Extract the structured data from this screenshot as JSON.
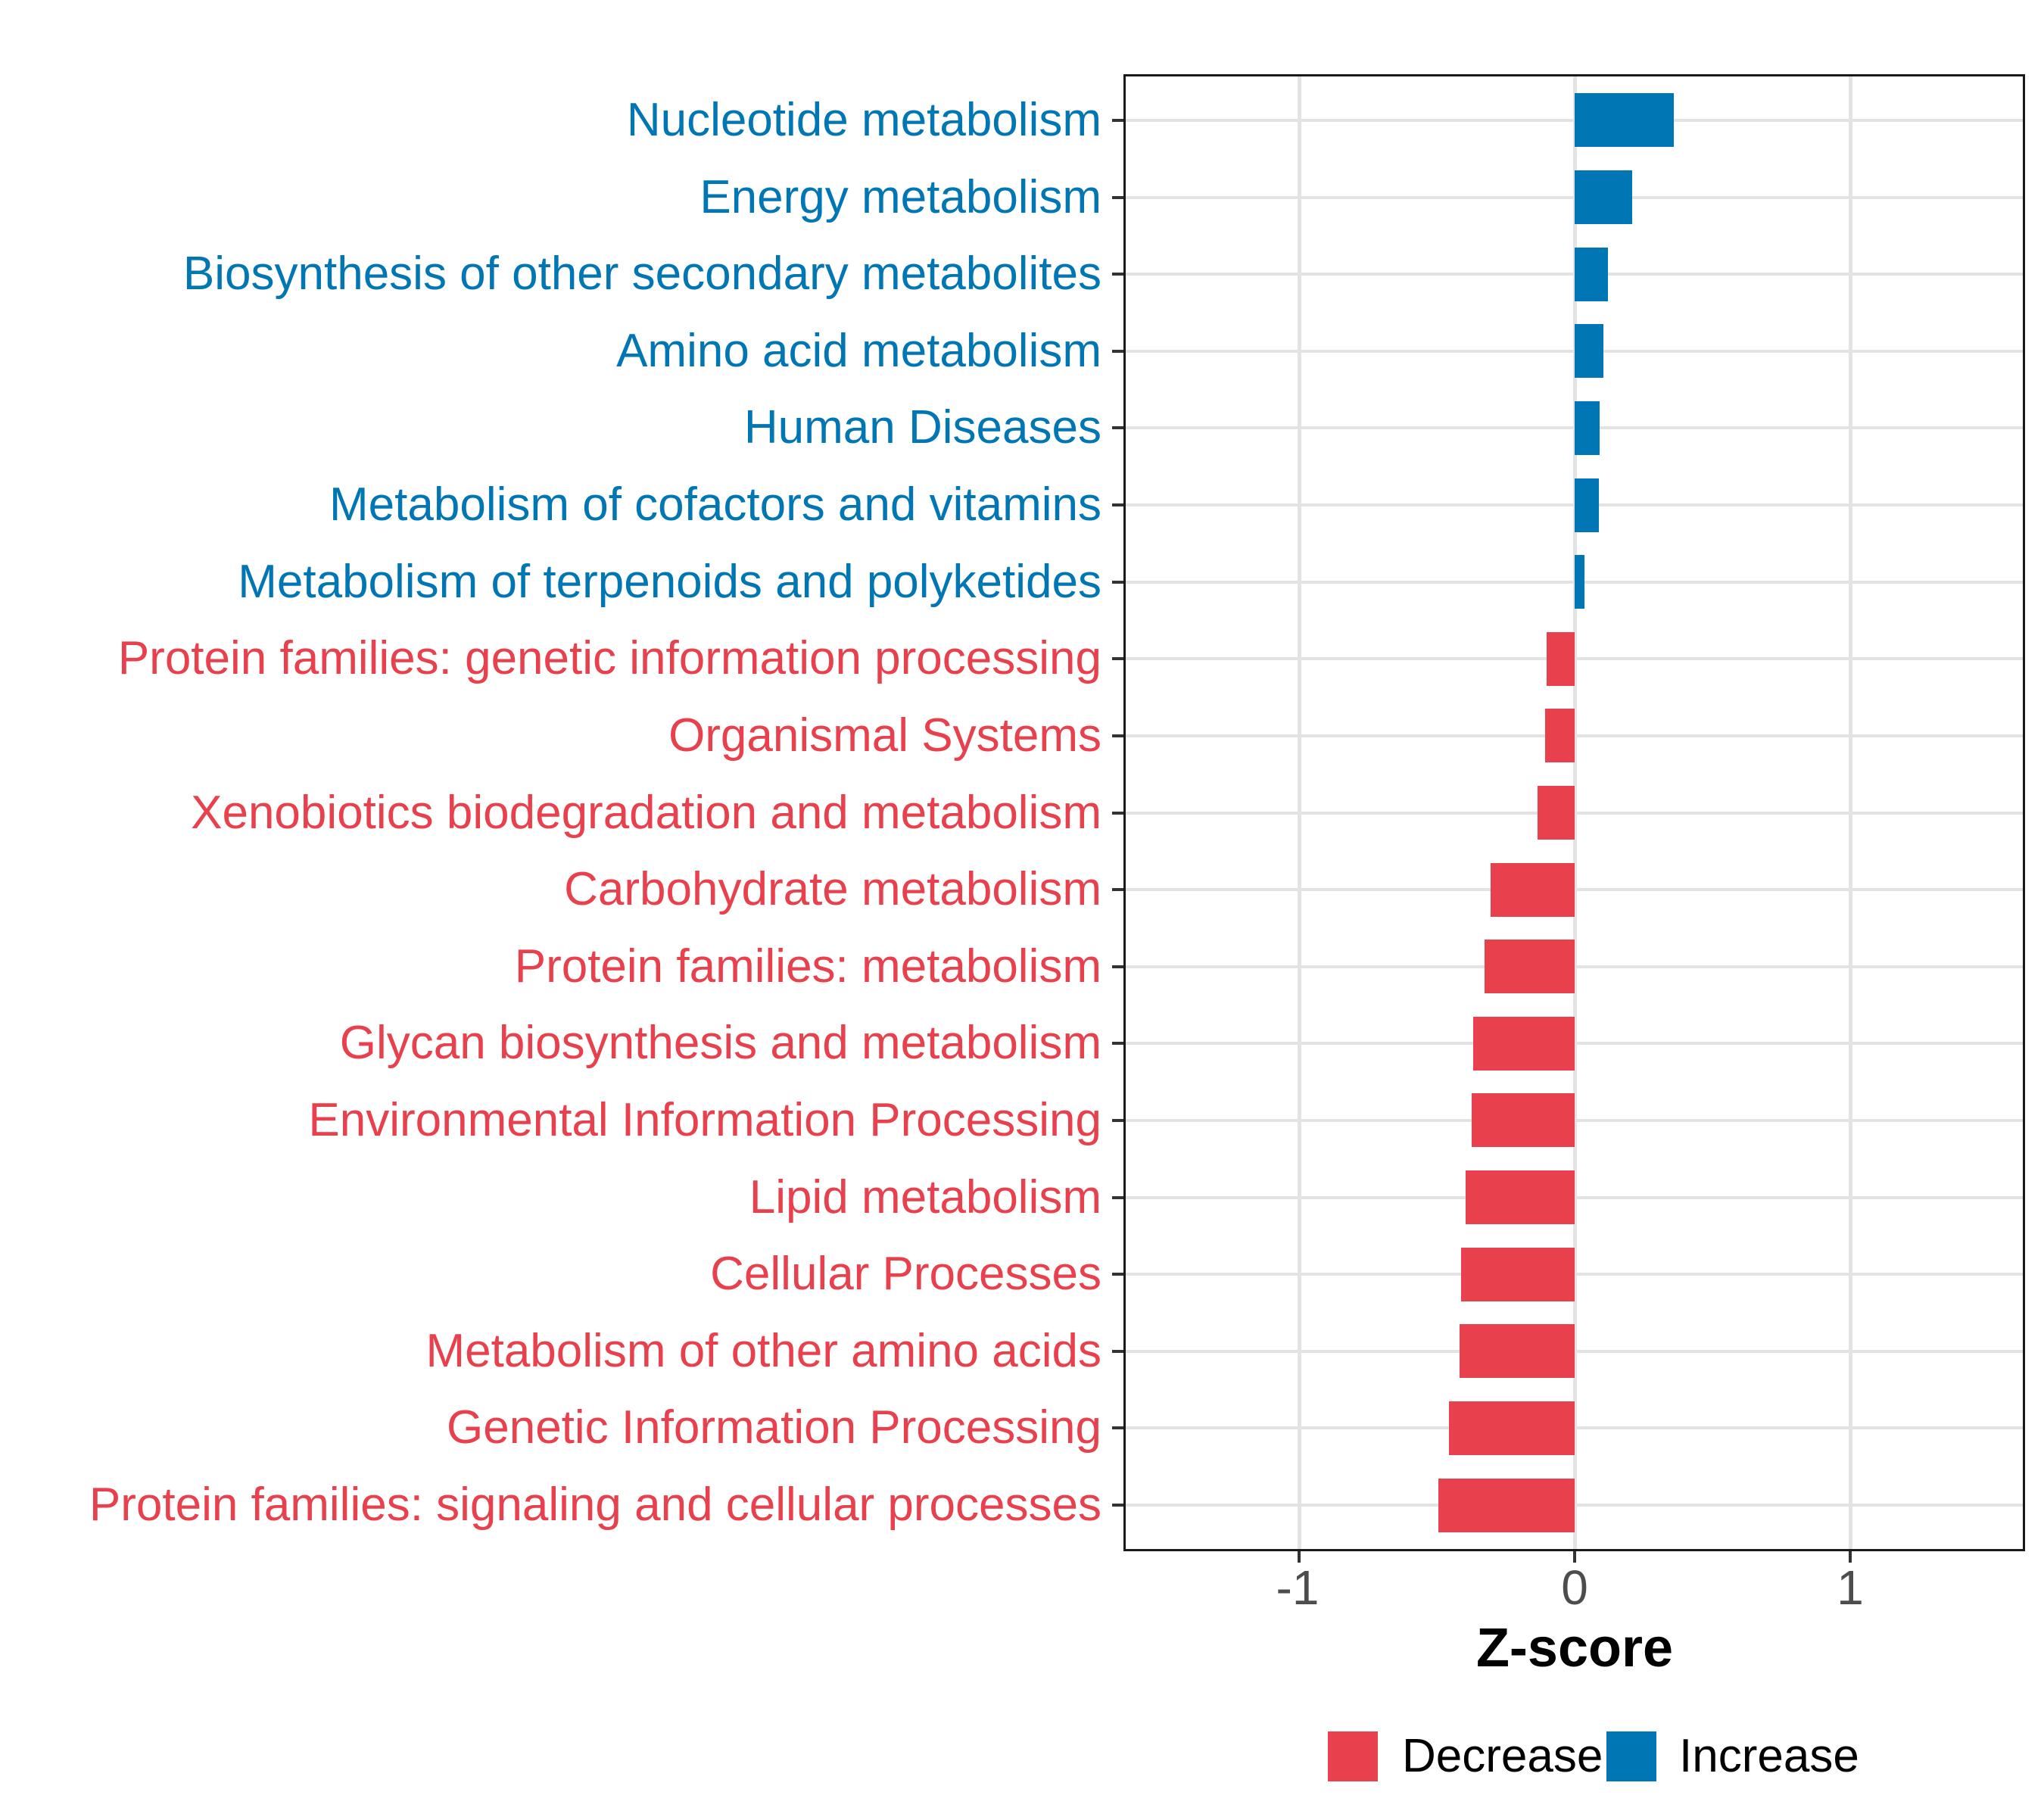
{
  "figure": {
    "background": "#FFFFFF"
  },
  "chart_data": {
    "type": "bar",
    "orientation": "horizontal",
    "title": "",
    "xlabel": "Z-score",
    "ylabel": "",
    "xlim": [
      -1.64,
      1.64
    ],
    "x_ticks": [
      -1,
      0,
      1
    ],
    "x_tick_labels": [
      "-1",
      "0",
      "1"
    ],
    "grid": "on",
    "legend_position": "bottom",
    "categories": [
      "Nucleotide metabolism",
      "Energy metabolism",
      "Biosynthesis of other secondary metabolites",
      "Amino acid metabolism",
      "Human Diseases",
      "Metabolism of cofactors and vitamins",
      "Metabolism of terpenoids and polyketides",
      "Protein families: genetic information processing",
      "Organismal Systems",
      "Xenobiotics biodegradation and metabolism",
      "Carbohydrate metabolism",
      "Protein families: metabolism",
      "Glycan biosynthesis and metabolism",
      "Environmental Information Processing",
      "Lipid metabolism",
      "Cellular Processes",
      "Metabolism of other amino acids",
      "Genetic Information Processing",
      "Protein families: signaling and cellular processes"
    ],
    "values": [
      0.36,
      0.21,
      0.12,
      0.105,
      0.091,
      0.088,
      0.036,
      -0.102,
      -0.108,
      -0.135,
      -0.305,
      -0.327,
      -0.368,
      -0.374,
      -0.396,
      -0.412,
      -0.418,
      -0.456,
      -0.495
    ],
    "direction": [
      "Increase",
      "Increase",
      "Increase",
      "Increase",
      "Increase",
      "Increase",
      "Increase",
      "Decrease",
      "Decrease",
      "Decrease",
      "Decrease",
      "Decrease",
      "Decrease",
      "Decrease",
      "Decrease",
      "Decrease",
      "Decrease",
      "Decrease",
      "Decrease"
    ],
    "legend": [
      {
        "label": "Decrease",
        "color": "#E8404D"
      },
      {
        "label": "Increase",
        "color": "#0076B4"
      }
    ]
  },
  "colors": {
    "decrease": "#E8404D",
    "increase": "#0076B4",
    "grid": "#E3E3E3",
    "axis_text": "#4D4D4D",
    "axis_title": "#000000",
    "tick_mark": "#333333",
    "panel_border": "#1A1A1A",
    "background": "#FFFFFF"
  }
}
